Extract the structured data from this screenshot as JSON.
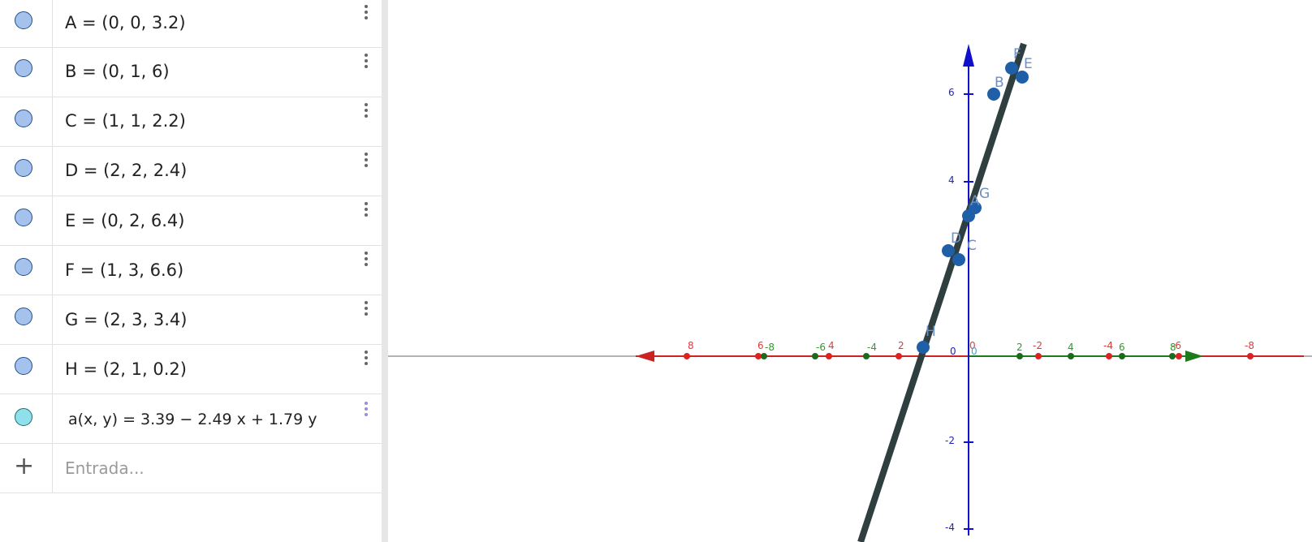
{
  "algebra": {
    "rows": [
      {
        "name": "A",
        "text": "A = (0, 0, 3.2)"
      },
      {
        "name": "B",
        "text": "B = (0, 1, 6)"
      },
      {
        "name": "C",
        "text": "C = (1, 1, 2.2)"
      },
      {
        "name": "D",
        "text": "D = (2, 2, 2.4)"
      },
      {
        "name": "E",
        "text": "E = (0, 2, 6.4)"
      },
      {
        "name": "F",
        "text": "F = (1, 3, 6.6)"
      },
      {
        "name": "G",
        "text": "G = (2, 3, 3.4)"
      },
      {
        "name": "H",
        "text": "H = (2, 1, 0.2)"
      }
    ],
    "function_row": {
      "text": "a(x, y)  =  3.39 − 2.49 x + 1.79 y"
    },
    "input": {
      "placeholder": "Entrada...",
      "add_glyph": "+"
    },
    "point_color": "#a5c2ec",
    "function_color": "#8fe0ea"
  },
  "graphics": {
    "z_axis_ticks": [
      "6",
      "4",
      "0",
      "-2",
      "-4"
    ],
    "x_axis_ticks": [
      "8",
      "6",
      "4",
      "2",
      "0",
      "-2",
      "-4",
      "-6",
      "-8"
    ],
    "y_axis_ticks": [
      "-8",
      "-6",
      "-4",
      "2",
      "4",
      "6",
      "8"
    ],
    "point_labels": [
      "F",
      "E",
      "B",
      "G",
      "A",
      "D",
      "C",
      "H"
    ],
    "origin_label": "0",
    "colors": {
      "x_axis": "#cc2222",
      "y_axis": "#1c7a1c",
      "z_axis": "#1010cc",
      "plane": "#2f3e3e",
      "points": "#1f5fa8"
    }
  }
}
